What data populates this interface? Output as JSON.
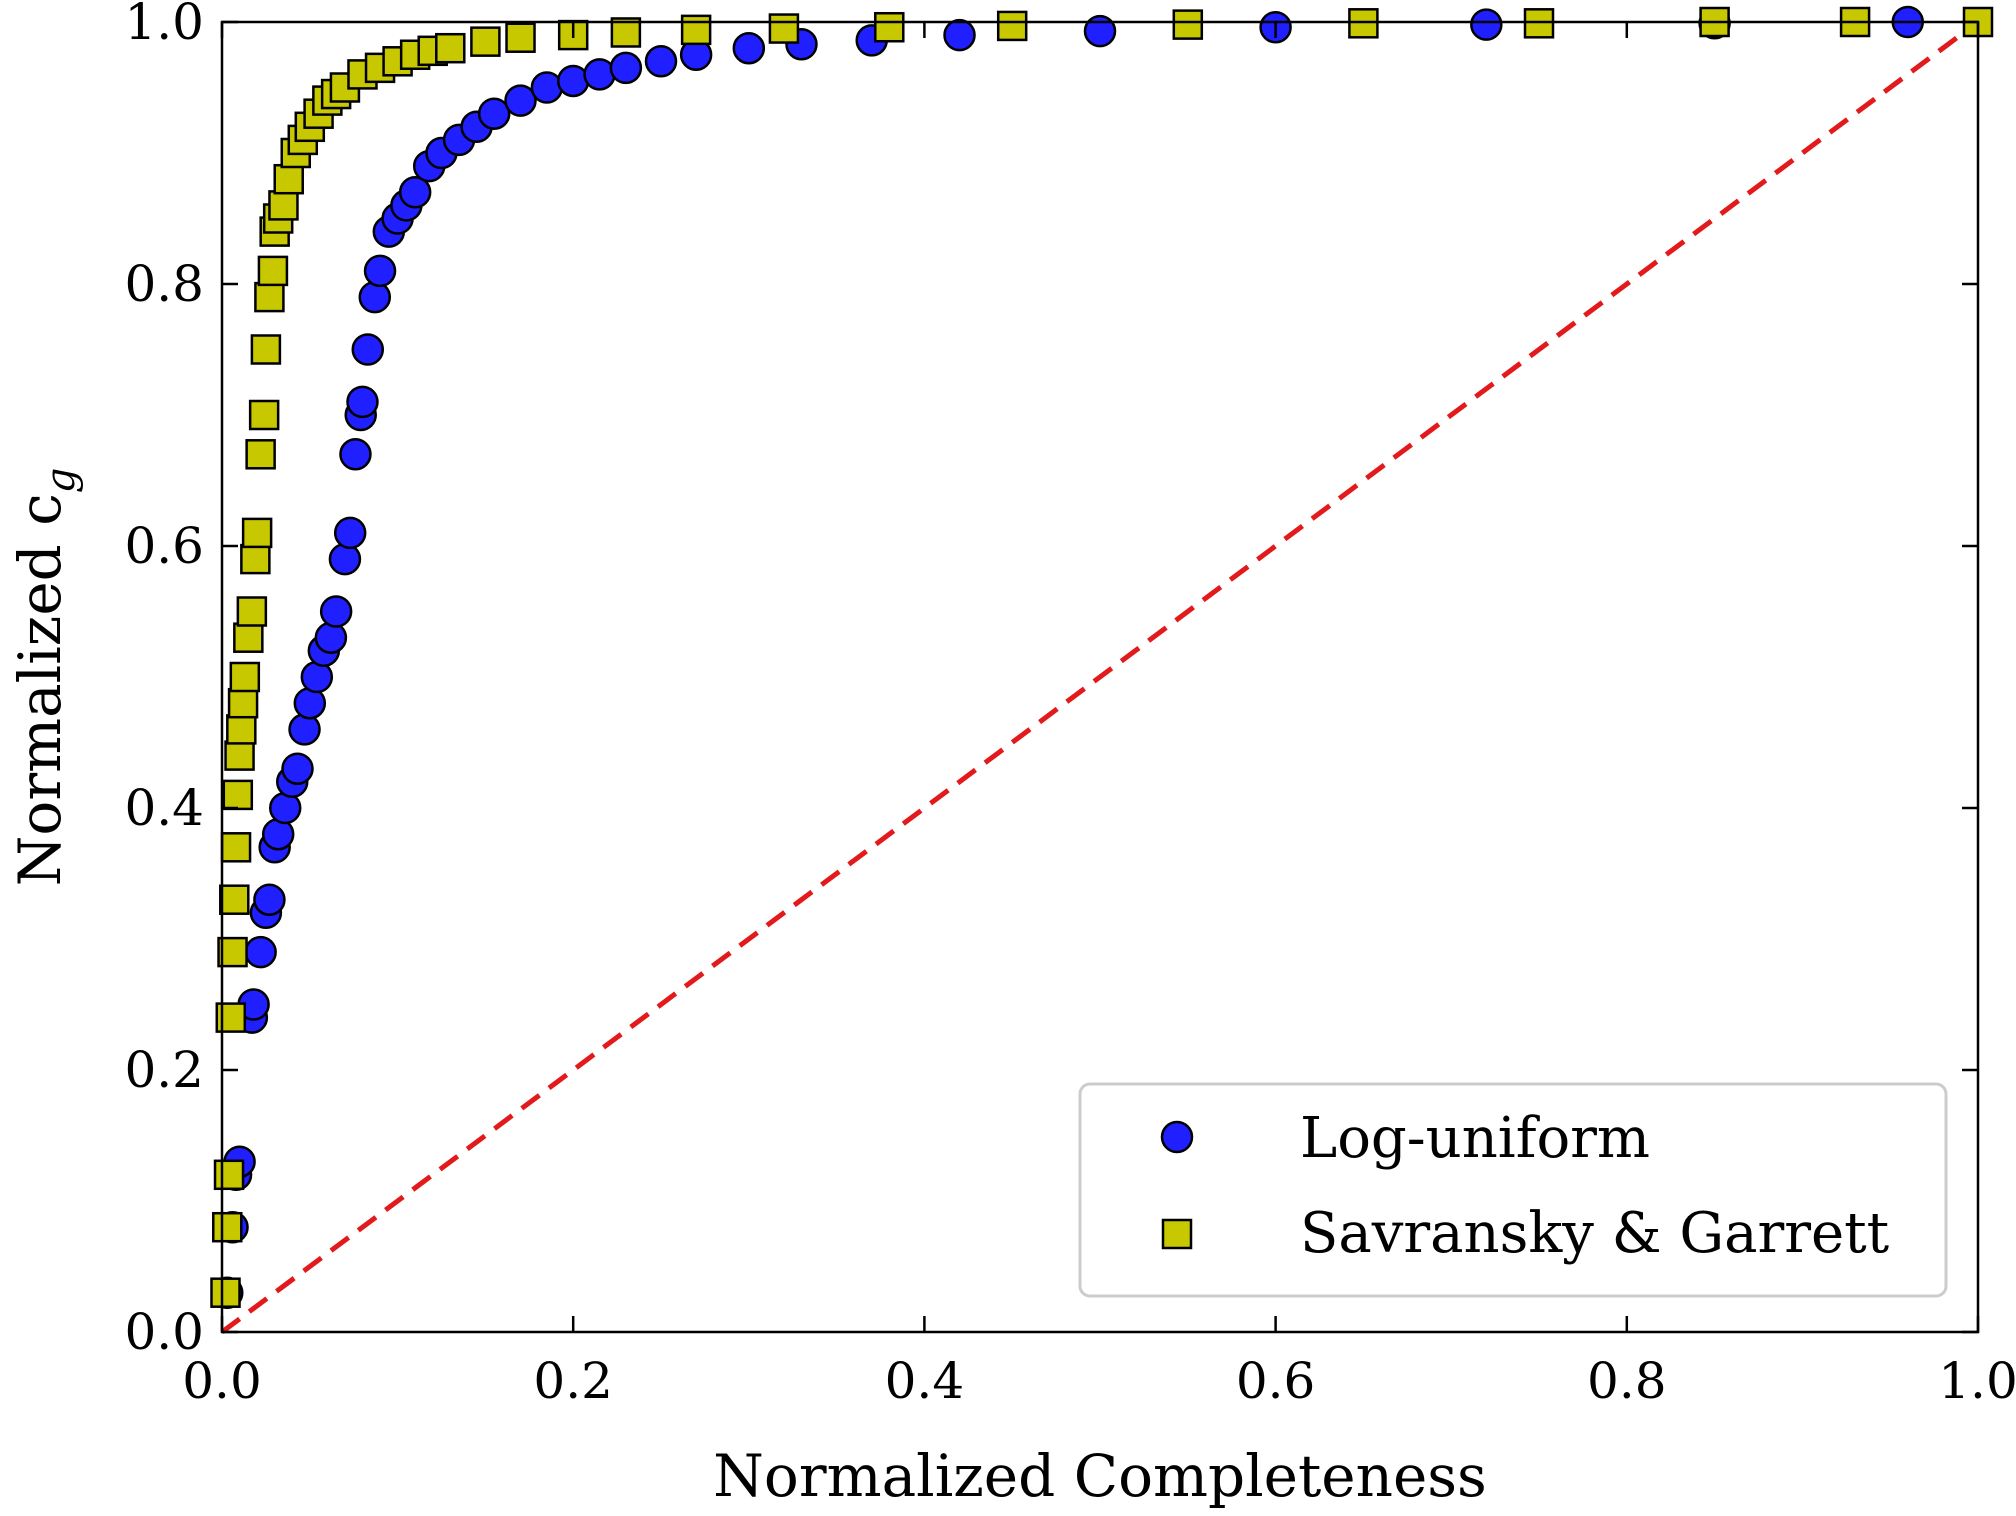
{
  "chart_data": {
    "type": "scatter",
    "title": "",
    "xlabel": "Normalized Completeness",
    "ylabel": "Normalized c",
    "ylabel_subscript": "g",
    "xlim": [
      0.0,
      1.0
    ],
    "ylim": [
      0.0,
      1.0
    ],
    "x_ticks": [
      "0.0",
      "0.2",
      "0.4",
      "0.6",
      "0.8",
      "1.0"
    ],
    "y_ticks": [
      "0.0",
      "0.2",
      "0.4",
      "0.6",
      "0.8",
      "1.0"
    ],
    "grid": false,
    "legend_position": "bottom-right",
    "reference_line": {
      "x": [
        0.0,
        1.0
      ],
      "y": [
        0.0,
        1.0
      ],
      "color": "#e31a1c",
      "style": "dashed"
    },
    "series": [
      {
        "name": "Log-uniform",
        "marker": "circle",
        "color": "#1f1fff",
        "x": [
          0.003,
          0.006,
          0.008,
          0.01,
          0.017,
          0.018,
          0.022,
          0.025,
          0.027,
          0.03,
          0.032,
          0.036,
          0.04,
          0.043,
          0.047,
          0.05,
          0.054,
          0.058,
          0.062,
          0.065,
          0.07,
          0.073,
          0.076,
          0.079,
          0.08,
          0.083,
          0.087,
          0.09,
          0.095,
          0.1,
          0.105,
          0.11,
          0.118,
          0.125,
          0.135,
          0.145,
          0.155,
          0.17,
          0.185,
          0.2,
          0.215,
          0.23,
          0.25,
          0.27,
          0.3,
          0.33,
          0.37,
          0.42,
          0.5,
          0.6,
          0.72,
          0.85,
          0.96
        ],
        "y": [
          0.03,
          0.08,
          0.12,
          0.13,
          0.24,
          0.25,
          0.29,
          0.32,
          0.33,
          0.37,
          0.38,
          0.4,
          0.42,
          0.43,
          0.46,
          0.48,
          0.5,
          0.52,
          0.53,
          0.55,
          0.59,
          0.61,
          0.67,
          0.7,
          0.71,
          0.75,
          0.79,
          0.81,
          0.84,
          0.85,
          0.86,
          0.87,
          0.89,
          0.9,
          0.91,
          0.92,
          0.93,
          0.94,
          0.95,
          0.955,
          0.96,
          0.965,
          0.97,
          0.975,
          0.98,
          0.983,
          0.986,
          0.99,
          0.993,
          0.996,
          0.998,
          0.999,
          1.0
        ]
      },
      {
        "name": "Savransky & Garrett",
        "marker": "square",
        "color": "#c8c800",
        "x": [
          0.002,
          0.003,
          0.004,
          0.005,
          0.006,
          0.007,
          0.008,
          0.009,
          0.01,
          0.011,
          0.012,
          0.013,
          0.015,
          0.017,
          0.019,
          0.02,
          0.022,
          0.024,
          0.025,
          0.027,
          0.029,
          0.03,
          0.032,
          0.035,
          0.038,
          0.042,
          0.046,
          0.05,
          0.055,
          0.06,
          0.065,
          0.07,
          0.08,
          0.09,
          0.1,
          0.11,
          0.12,
          0.13,
          0.15,
          0.17,
          0.2,
          0.23,
          0.27,
          0.32,
          0.38,
          0.45,
          0.55,
          0.65,
          0.75,
          0.85,
          0.93,
          1.0
        ],
        "y": [
          0.03,
          0.08,
          0.12,
          0.24,
          0.29,
          0.33,
          0.37,
          0.41,
          0.44,
          0.46,
          0.48,
          0.5,
          0.53,
          0.55,
          0.59,
          0.61,
          0.67,
          0.7,
          0.75,
          0.79,
          0.81,
          0.84,
          0.85,
          0.86,
          0.88,
          0.9,
          0.91,
          0.92,
          0.93,
          0.94,
          0.945,
          0.95,
          0.96,
          0.965,
          0.97,
          0.975,
          0.978,
          0.98,
          0.985,
          0.988,
          0.99,
          0.992,
          0.994,
          0.995,
          0.996,
          0.997,
          0.998,
          0.999,
          0.999,
          1.0,
          1.0,
          1.0
        ]
      }
    ]
  }
}
